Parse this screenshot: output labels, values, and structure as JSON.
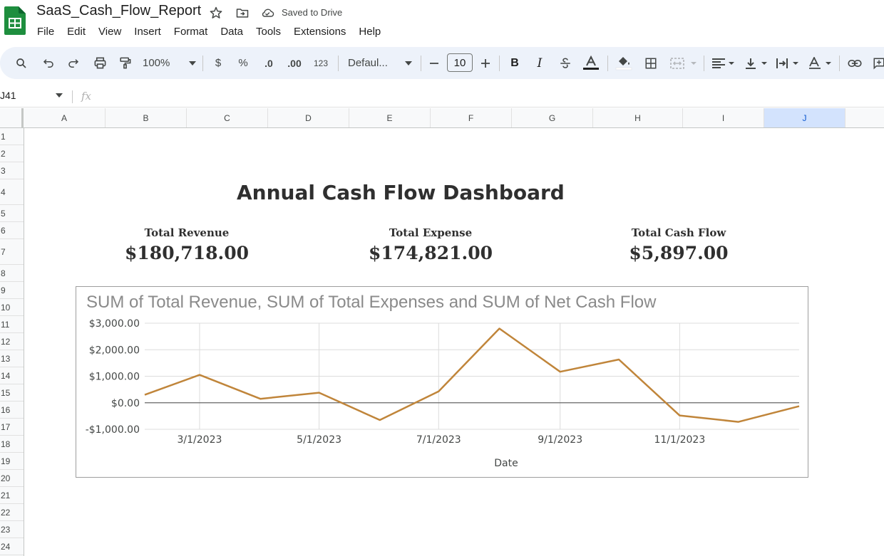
{
  "app": {
    "doc_title": "SaaS_Cash_Flow_Report",
    "save_status": "Saved to Drive",
    "menu": [
      "File",
      "Edit",
      "View",
      "Insert",
      "Format",
      "Data",
      "Tools",
      "Extensions",
      "Help"
    ]
  },
  "toolbar": {
    "zoom": "100%",
    "currency": "$",
    "percent": "%",
    "decrease_decimal": ".0",
    "increase_decimal": ".00",
    "number_format": "123",
    "font": "Defaul...",
    "font_size": "10",
    "bold": "B",
    "italic": "I"
  },
  "formula_bar": {
    "cell_ref": "J41",
    "fx": "fx"
  },
  "columns": [
    "A",
    "B",
    "C",
    "D",
    "E",
    "F",
    "G",
    "H",
    "I",
    "J"
  ],
  "selected_column": "J",
  "rows": [
    "1",
    "2",
    "3",
    "4",
    "5",
    "6",
    "7",
    "8",
    "9",
    "10",
    "11",
    "12",
    "13",
    "14",
    "15",
    "16",
    "17",
    "18",
    "19",
    "20",
    "21",
    "22",
    "23",
    "24"
  ],
  "dashboard": {
    "title": "Annual Cash Flow Dashboard",
    "kpis": [
      {
        "label": "Total Revenue",
        "value": "$180,718.00"
      },
      {
        "label": "Total Expense",
        "value": "$174,821.00"
      },
      {
        "label": "Total Cash Flow",
        "value": "$5,897.00"
      }
    ]
  },
  "chart_data": {
    "type": "line",
    "title": "SUM of Total Revenue, SUM of Total Expenses and SUM of Net Cash Flow",
    "xlabel": "Date",
    "ylabel": "",
    "x": [
      "2/1/2023",
      "3/1/2023",
      "4/1/2023",
      "5/1/2023",
      "6/1/2023",
      "7/1/2023",
      "8/1/2023",
      "9/1/2023",
      "10/1/2023",
      "11/1/2023",
      "12/1/2023",
      "1/1/2024"
    ],
    "x_ticks": [
      "3/1/2023",
      "5/1/2023",
      "7/1/2023",
      "9/1/2023",
      "11/1/2023"
    ],
    "y_ticks": [
      3000,
      2000,
      1000,
      0,
      -1000
    ],
    "y_tick_labels": [
      "$3,000.00",
      "$2,000.00",
      "$1,000.00",
      "$0.00",
      "-$1,000.00"
    ],
    "ylim": [
      -1000,
      3000
    ],
    "grid": true,
    "series": [
      {
        "values": [
          300,
          1050,
          150,
          380,
          -650,
          430,
          2800,
          1170,
          1630,
          -480,
          -720,
          -130
        ],
        "color": "#c0853a"
      }
    ]
  }
}
